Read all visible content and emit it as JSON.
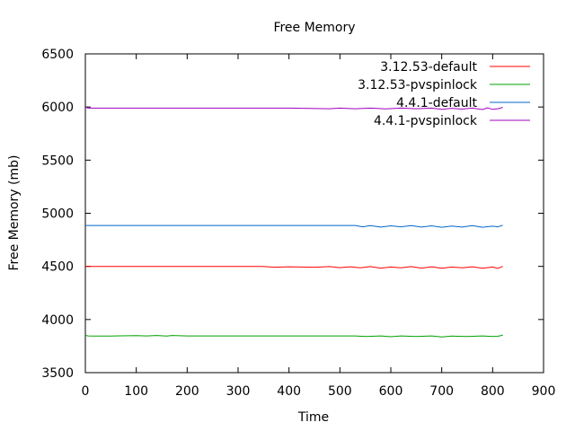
{
  "chart_data": {
    "type": "line",
    "title": "Free Memory",
    "xlabel": "Time",
    "ylabel": "Free Memory (mb)",
    "xlim": [
      0,
      900
    ],
    "ylim": [
      3500,
      6500
    ],
    "xticks": [
      0,
      100,
      200,
      300,
      400,
      500,
      600,
      700,
      800,
      900
    ],
    "yticks": [
      3500,
      4000,
      4500,
      5000,
      5500,
      6000,
      6500
    ],
    "grid": false,
    "legend_position": "top-right",
    "series": [
      {
        "name": "3.12.53-default",
        "color": "#ff0000",
        "x": [
          0,
          50,
          100,
          150,
          200,
          250,
          300,
          350,
          370,
          400,
          450,
          480,
          500,
          520,
          540,
          560,
          580,
          600,
          620,
          640,
          660,
          680,
          700,
          720,
          740,
          760,
          780,
          800,
          810,
          820
        ],
        "y": [
          4500,
          4500,
          4500,
          4500,
          4500,
          4500,
          4500,
          4500,
          4492,
          4496,
          4492,
          4498,
          4488,
          4496,
          4486,
          4498,
          4484,
          4494,
          4486,
          4498,
          4484,
          4496,
          4482,
          4494,
          4486,
          4496,
          4482,
          4494,
          4482,
          4500
        ]
      },
      {
        "name": "3.12.53-pvspinlock",
        "color": "#00a000",
        "x": [
          0,
          5,
          20,
          50,
          100,
          120,
          140,
          160,
          170,
          200,
          250,
          300,
          350,
          400,
          450,
          500,
          530,
          550,
          580,
          600,
          620,
          650,
          680,
          700,
          720,
          750,
          780,
          800,
          810,
          820
        ],
        "y": [
          3852,
          3846,
          3845,
          3845,
          3848,
          3846,
          3850,
          3844,
          3850,
          3846,
          3846,
          3846,
          3846,
          3846,
          3846,
          3846,
          3846,
          3840,
          3846,
          3838,
          3846,
          3840,
          3846,
          3836,
          3844,
          3840,
          3846,
          3840,
          3842,
          3852
        ]
      },
      {
        "name": "4.4.1-default",
        "color": "#0066cc",
        "x": [
          0,
          50,
          100,
          200,
          300,
          400,
          500,
          530,
          545,
          560,
          580,
          600,
          620,
          640,
          660,
          680,
          700,
          720,
          740,
          760,
          780,
          800,
          810,
          820
        ],
        "y": [
          4885,
          4885,
          4885,
          4885,
          4885,
          4885,
          4885,
          4885,
          4872,
          4884,
          4870,
          4882,
          4872,
          4884,
          4870,
          4882,
          4868,
          4880,
          4870,
          4884,
          4868,
          4878,
          4872,
          4888
        ]
      },
      {
        "name": "4.4.1-pvspinlock",
        "color": "#a000c0",
        "x": [
          0,
          5,
          20,
          50,
          100,
          200,
          300,
          400,
          480,
          500,
          530,
          560,
          590,
          620,
          650,
          680,
          700,
          720,
          740,
          760,
          780,
          790,
          800,
          810,
          820
        ],
        "y": [
          6000,
          5990,
          5990,
          5990,
          5990,
          5990,
          5990,
          5990,
          5984,
          5990,
          5984,
          5990,
          5982,
          5990,
          5984,
          5990,
          5978,
          5988,
          5980,
          5990,
          5976,
          5992,
          5978,
          5984,
          5996
        ]
      }
    ]
  }
}
